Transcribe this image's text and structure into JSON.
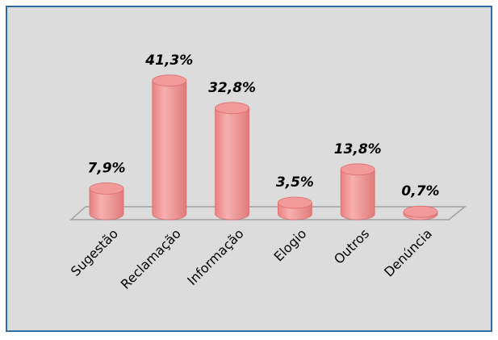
{
  "chart_data": {
    "type": "bar",
    "categories": [
      "Sugestão",
      "Reclamação",
      "Informação",
      "Elogio",
      "Outros",
      "Denúncia"
    ],
    "values": [
      7.9,
      41.3,
      32.8,
      3.5,
      13.8,
      0.7
    ],
    "value_labels": [
      "7,9%",
      "41,3%",
      "32,8%",
      "3,5%",
      "13,8%",
      "0,7%"
    ],
    "color": "#f29a9a"
  }
}
